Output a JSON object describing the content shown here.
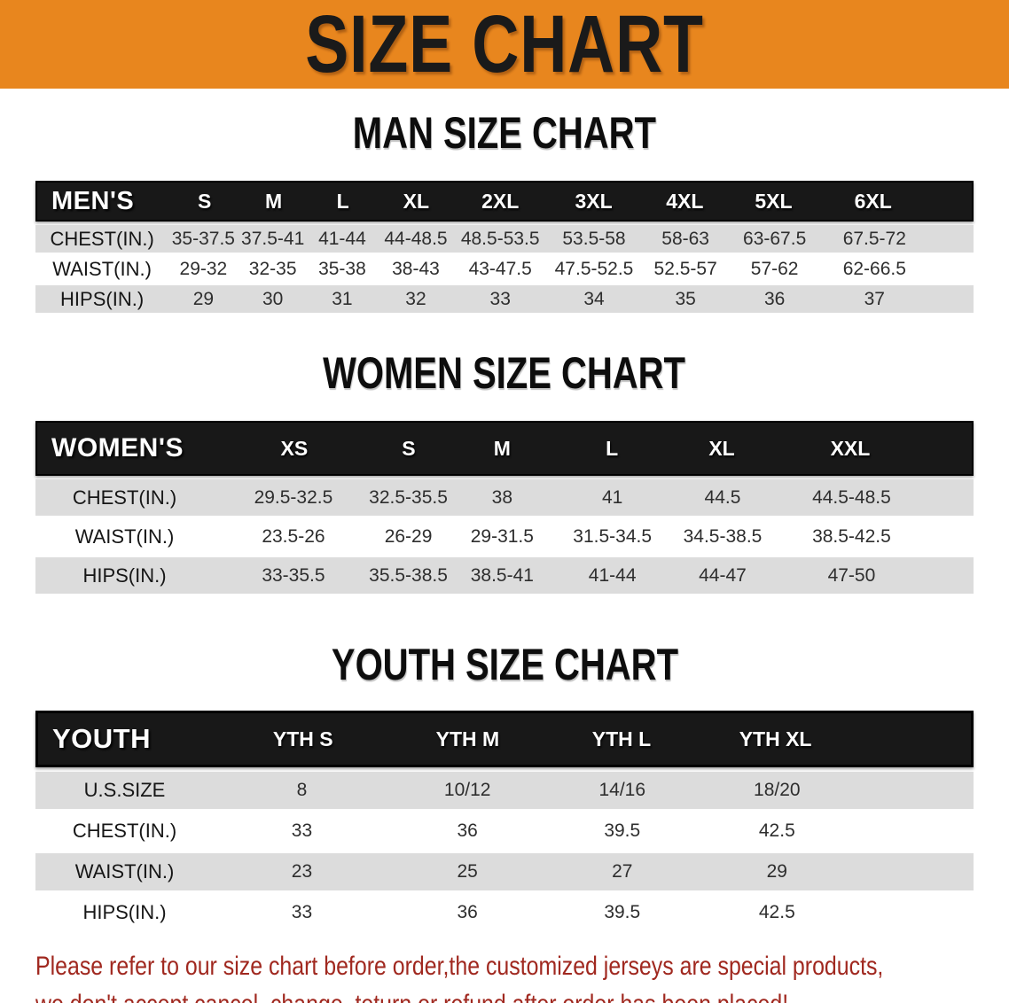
{
  "banner": {
    "title": "SIZE CHART"
  },
  "colors": {
    "banner_bg": "#E8861E",
    "banner_text": "#1A1A1A",
    "header_bg": "#181818",
    "header_border": "#000000",
    "header_text": "#FFFFFF",
    "row_bg": "#FFFFFF",
    "row_alt_bg": "#DCDCDC",
    "cell_text": "#2E2E2E",
    "heading_text": "#0D0D0D",
    "footer_text": "#A0281F"
  },
  "sections": [
    {
      "heading": "MAN SIZE CHART",
      "table": {
        "id": "mens",
        "corner_label": "MEN'S",
        "columns": [
          "S",
          "M",
          "L",
          "XL",
          "2XL",
          "3XL",
          "4XL",
          "5XL",
          "6XL"
        ],
        "rows": [
          {
            "label": "CHEST(IN.)",
            "values": [
              "35-37.5",
              "37.5-41",
              "41-44",
              "44-48.5",
              "48.5-53.5",
              "53.5-58",
              "58-63",
              "63-67.5",
              "67.5-72"
            ]
          },
          {
            "label": "WAIST(IN.)",
            "values": [
              "29-32",
              "32-35",
              "35-38",
              "38-43",
              "43-47.5",
              "47.5-52.5",
              "52.5-57",
              "57-62",
              "62-66.5"
            ]
          },
          {
            "label": "HIPS(IN.)",
            "values": [
              "29",
              "30",
              "31",
              "32",
              "33",
              "34",
              "35",
              "36",
              "37"
            ]
          }
        ]
      }
    },
    {
      "heading": "WOMEN SIZE CHART",
      "table": {
        "id": "womens",
        "corner_label": "WOMEN'S",
        "columns": [
          "XS",
          "S",
          "M",
          "L",
          "XL",
          "XXL"
        ],
        "rows": [
          {
            "label": "CHEST(IN.)",
            "values": [
              "29.5-32.5",
              "32.5-35.5",
              "38",
              "41",
              "44.5",
              "44.5-48.5"
            ]
          },
          {
            "label": "WAIST(IN.)",
            "values": [
              "23.5-26",
              "26-29",
              "29-31.5",
              "31.5-34.5",
              "34.5-38.5",
              "38.5-42.5"
            ]
          },
          {
            "label": "HIPS(IN.)",
            "values": [
              "33-35.5",
              "35.5-38.5",
              "38.5-41",
              "41-44",
              "44-47",
              "47-50"
            ]
          }
        ]
      }
    },
    {
      "heading": "YOUTH SIZE CHART",
      "table": {
        "id": "youth",
        "corner_label": "YOUTH",
        "columns": [
          "YTH S",
          "YTH M",
          "YTH L",
          "YTH XL"
        ],
        "rows": [
          {
            "label": "U.S.SIZE",
            "values": [
              "8",
              "10/12",
              "14/16",
              "18/20"
            ]
          },
          {
            "label": "CHEST(IN.)",
            "values": [
              "33",
              "36",
              "39.5",
              "42.5"
            ]
          },
          {
            "label": "WAIST(IN.)",
            "values": [
              "23",
              "25",
              "27",
              "29"
            ]
          },
          {
            "label": "HIPS(IN.)",
            "values": [
              "33",
              "36",
              "39.5",
              "42.5"
            ]
          }
        ]
      }
    }
  ],
  "footer": {
    "line1": "Please refer to our size chart before order,the customized jerseys are special products,",
    "line2": "we don't accept cancel, change, teturn or refund after order has been placed!"
  }
}
